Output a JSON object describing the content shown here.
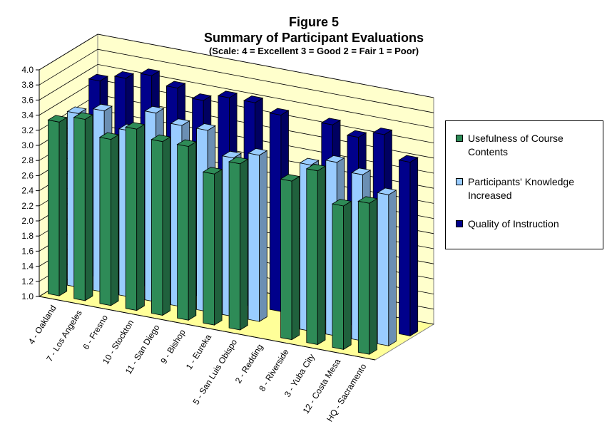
{
  "title": {
    "line1": "Figure 5",
    "line2": "Summary of Participant Evaluations",
    "line3": "(Scale: 4 = Excellent   3 = Good   2 = Fair   1 = Poor)"
  },
  "colors": {
    "wall": "#ffffcc",
    "floor": "#ffff99",
    "usefulness": "#2e8b57",
    "knowledge": "#99ccff",
    "instruction": "#00008b"
  },
  "chart_data": {
    "type": "bar",
    "subtype": "3d-clustered",
    "categories": [
      "4 - Oakland",
      "7 - Los Angeles",
      "6 - Fresno",
      "10 - Stockton",
      "11 - San Diego",
      "9 - Bishop",
      "1 - Eureka",
      "5 - San Luis Obispo",
      "2 - Redding",
      "8 - Riverside",
      "3 - Yuba City",
      "12 - Costa Mesa",
      "HQ - Sacramento"
    ],
    "series": [
      {
        "name": "Usefulness of Course Contents",
        "color": "#2e8b57",
        "values": [
          3.3,
          3.4,
          3.2,
          3.4,
          3.3,
          3.3,
          3.0,
          3.2,
          null,
          3.1,
          3.3,
          2.9,
          3.0
        ]
      },
      {
        "name": "Participants' Knowledge Increased",
        "color": "#99ccff",
        "values": [
          3.3,
          3.4,
          3.2,
          3.5,
          3.4,
          3.4,
          3.1,
          3.2,
          null,
          3.2,
          3.3,
          3.2,
          3.0
        ]
      },
      {
        "name": "Quality of Instruction",
        "color": "#00008b",
        "values": [
          3.6,
          3.7,
          3.8,
          3.7,
          3.6,
          3.7,
          3.7,
          3.6,
          null,
          3.6,
          3.5,
          3.6,
          3.3
        ]
      }
    ],
    "yticks": [
      "1.0",
      "1.2",
      "1.4",
      "1.6",
      "1.8",
      "2.0",
      "2.2",
      "2.4",
      "2.6",
      "2.8",
      "3.0",
      "3.2",
      "3.4",
      "3.6",
      "3.8",
      "4.0"
    ],
    "ylim": [
      1.0,
      4.0
    ],
    "xlabel": "",
    "ylabel": "",
    "grid": true,
    "legend_position": "right"
  }
}
